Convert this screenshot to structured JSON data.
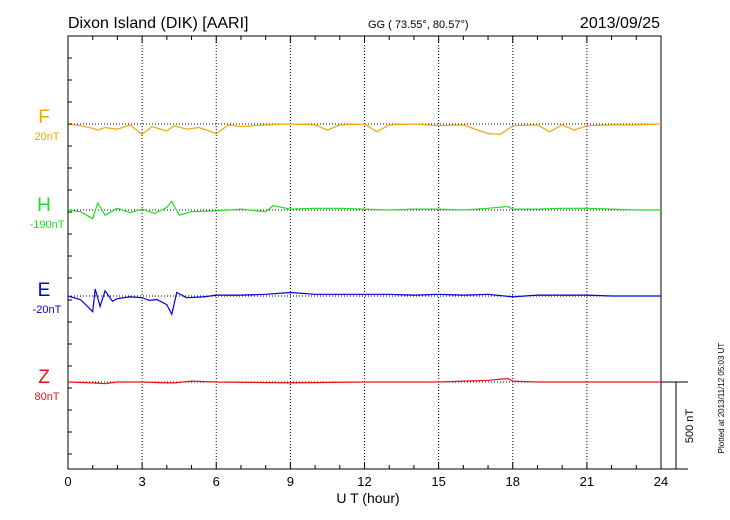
{
  "header": {
    "title_left": "Dixon Island (DIK)  [AARI]",
    "coords": "GG ( 73.55°,  80.57°)",
    "date": "2013/09/25"
  },
  "footnote": "Plotted at 2013/11/12 05:03 UT",
  "scale_bar_label": "500 nT",
  "chart_data": {
    "type": "line",
    "xlabel": "U T (hour)",
    "xlim": [
      0,
      24
    ],
    "xticks": [
      0,
      3,
      6,
      9,
      12,
      15,
      18,
      21,
      24
    ],
    "xtick_labels": [
      "0",
      "3",
      "6",
      "9",
      "12",
      "15",
      "18",
      "21",
      "24"
    ],
    "scale_nT": 500,
    "channels": [
      {
        "name": "F",
        "offset_label": "20nT",
        "color": "#f0a800",
        "x": [
          0,
          0.5,
          1.0,
          1.2,
          1.5,
          2.0,
          2.5,
          3.0,
          3.4,
          4.0,
          4.3,
          4.8,
          5.3,
          6.0,
          6.5,
          7.0,
          8.0,
          9.0,
          10.0,
          10.5,
          11.0,
          12.0,
          12.5,
          13.0,
          14.0,
          15.0,
          16.0,
          17.0,
          17.5,
          18.0,
          19.0,
          19.5,
          20.0,
          20.5,
          21.0,
          22.0,
          23.0,
          24.0
        ],
        "values": [
          0,
          10,
          25,
          35,
          20,
          30,
          5,
          60,
          15,
          40,
          10,
          30,
          20,
          55,
          5,
          15,
          5,
          0,
          5,
          35,
          5,
          0,
          45,
          5,
          0,
          10,
          5,
          55,
          60,
          10,
          5,
          45,
          5,
          35,
          10,
          5,
          5,
          0
        ]
      },
      {
        "name": "H",
        "offset_label": "-190nT",
        "color": "#22dd22",
        "x": [
          0,
          0.5,
          1.0,
          1.2,
          1.5,
          2.0,
          2.5,
          3.0,
          3.5,
          4.0,
          4.2,
          4.5,
          5.0,
          6.0,
          7.0,
          8.0,
          8.3,
          9.0,
          10.0,
          11.0,
          12.0,
          13.0,
          14.0,
          15.0,
          16.0,
          17.0,
          17.8,
          18.0,
          19.0,
          20.0,
          21.0,
          22.0,
          23.0,
          24.0
        ],
        "values": [
          0,
          10,
          50,
          -40,
          30,
          -10,
          15,
          -5,
          20,
          -15,
          -50,
          30,
          10,
          5,
          -5,
          10,
          -25,
          -5,
          -10,
          -10,
          -5,
          0,
          -5,
          -5,
          0,
          -10,
          -20,
          -5,
          -5,
          -10,
          -10,
          -5,
          0,
          0
        ]
      },
      {
        "name": "E",
        "offset_label": "-20nT",
        "color": "#0000dd",
        "x": [
          0,
          0.5,
          1.0,
          1.1,
          1.3,
          1.5,
          1.8,
          2.0,
          2.5,
          3.0,
          3.3,
          3.6,
          4.0,
          4.2,
          4.4,
          4.8,
          5.5,
          6.0,
          7.0,
          8.0,
          9.0,
          10.0,
          11.0,
          12.0,
          13.0,
          14.0,
          15.0,
          16.0,
          17.0,
          18.0,
          19.0,
          20.0,
          21.0,
          22.0,
          23.0,
          24.0
        ],
        "values": [
          0,
          20,
          90,
          -40,
          60,
          -30,
          30,
          15,
          5,
          10,
          25,
          20,
          50,
          105,
          -20,
          10,
          5,
          -5,
          -5,
          -10,
          -20,
          -10,
          -10,
          -10,
          -10,
          -5,
          -10,
          -5,
          -10,
          5,
          -5,
          -5,
          -5,
          0,
          0,
          0
        ]
      },
      {
        "name": "Z",
        "offset_label": "80nT",
        "color": "#ee1111",
        "x": [
          0,
          1.0,
          1.5,
          2.0,
          3.0,
          4.0,
          4.3,
          5.0,
          6.0,
          9.0,
          12.0,
          15.0,
          16.0,
          17.0,
          17.8,
          18.0,
          19.0,
          21.0,
          24.0
        ],
        "values": [
          0,
          5,
          10,
          0,
          0,
          5,
          5,
          -5,
          0,
          5,
          0,
          0,
          -5,
          -10,
          -20,
          -5,
          0,
          0,
          0
        ]
      }
    ]
  }
}
